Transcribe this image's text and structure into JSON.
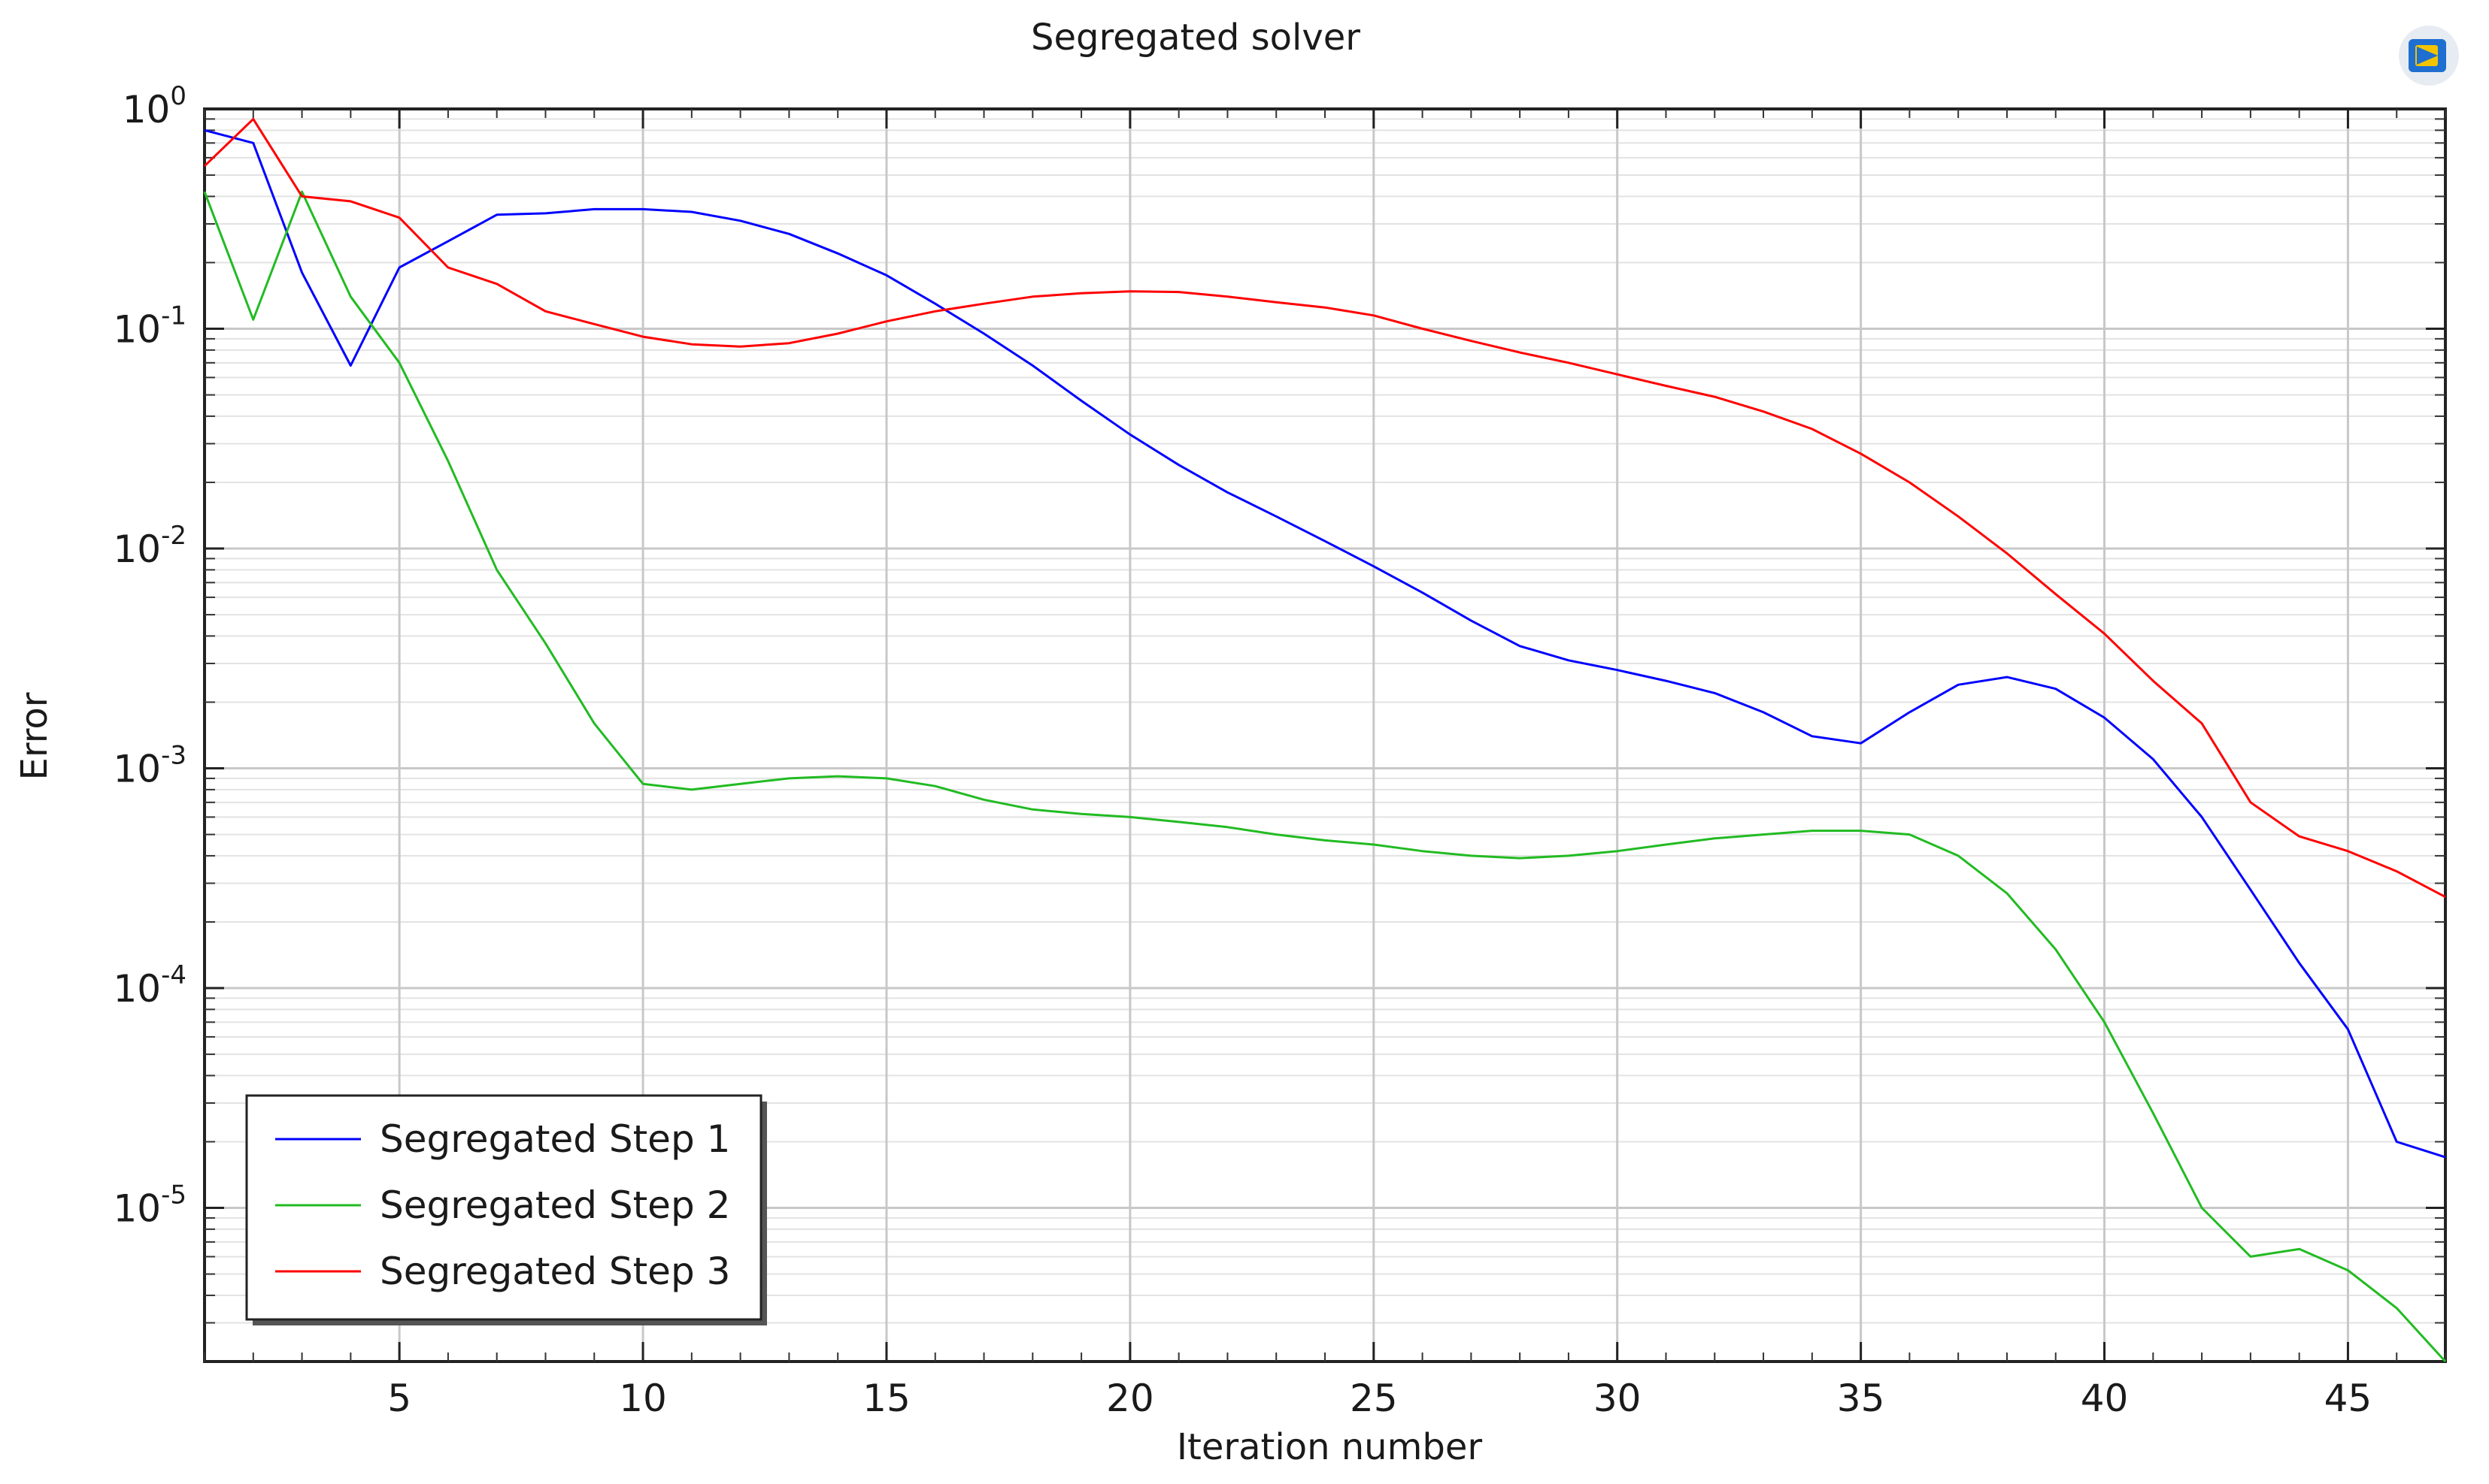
{
  "chart_data": {
    "type": "line",
    "title": "Segregated solver",
    "xlabel": "Iteration number",
    "ylabel": "Error",
    "x_scale": "linear",
    "y_scale": "log",
    "xlim": [
      1,
      47
    ],
    "ylim": [
      2e-06,
      1
    ],
    "x_ticks": [
      5,
      10,
      15,
      20,
      25,
      30,
      35,
      40,
      45
    ],
    "y_ticks": [
      {
        "value": 1,
        "base": "10",
        "exp": "0"
      },
      {
        "value": 0.1,
        "base": "10",
        "exp": "-1"
      },
      {
        "value": 0.01,
        "base": "10",
        "exp": "-2"
      },
      {
        "value": 0.001,
        "base": "10",
        "exp": "-3"
      },
      {
        "value": 0.0001,
        "base": "10",
        "exp": "-4"
      },
      {
        "value": 1e-05,
        "base": "10",
        "exp": "-5"
      }
    ],
    "grid": true,
    "legend_position": "bottom-left",
    "x": [
      1,
      2,
      3,
      4,
      5,
      6,
      7,
      8,
      9,
      10,
      11,
      12,
      13,
      14,
      15,
      16,
      17,
      18,
      19,
      20,
      21,
      22,
      23,
      24,
      25,
      26,
      27,
      28,
      29,
      30,
      31,
      32,
      33,
      34,
      35,
      36,
      37,
      38,
      39,
      40,
      41,
      42,
      43,
      44,
      45,
      46,
      47
    ],
    "series": [
      {
        "name": "Segregated Step 1",
        "color": "#0000ff",
        "values": [
          0.8,
          0.7,
          0.18,
          0.068,
          0.19,
          0.25,
          0.33,
          0.335,
          0.35,
          0.35,
          0.34,
          0.31,
          0.27,
          0.22,
          0.175,
          0.13,
          0.095,
          0.068,
          0.047,
          0.033,
          0.024,
          0.018,
          0.014,
          0.0108,
          0.0083,
          0.0063,
          0.0047,
          0.0036,
          0.0031,
          0.0028,
          0.0025,
          0.0022,
          0.0018,
          0.0014,
          0.0013,
          0.0018,
          0.0024,
          0.0026,
          0.0023,
          0.0017,
          0.0011,
          0.0006,
          0.00028,
          0.00013,
          6.5e-05,
          2e-05,
          1.7e-05
        ]
      },
      {
        "name": "Segregated Step 2",
        "color": "#22bb22",
        "values": [
          0.42,
          0.11,
          0.42,
          0.14,
          0.07,
          0.025,
          0.008,
          0.0037,
          0.0016,
          0.00085,
          0.0008,
          0.00085,
          0.0009,
          0.00092,
          0.0009,
          0.00083,
          0.00072,
          0.00065,
          0.00062,
          0.0006,
          0.00057,
          0.00054,
          0.0005,
          0.00047,
          0.00045,
          0.00042,
          0.0004,
          0.00039,
          0.0004,
          0.00042,
          0.00045,
          0.00048,
          0.0005,
          0.00052,
          0.00052,
          0.0005,
          0.0004,
          0.00027,
          0.00015,
          7e-05,
          2.7e-05,
          1e-05,
          6e-06,
          6.5e-06,
          5.2e-06,
          3.5e-06,
          2e-06
        ]
      },
      {
        "name": "Segregated Step 3",
        "color": "#ff0000",
        "values": [
          0.55,
          0.9,
          0.4,
          0.38,
          0.32,
          0.19,
          0.16,
          0.12,
          0.105,
          0.092,
          0.085,
          0.083,
          0.086,
          0.095,
          0.108,
          0.12,
          0.13,
          0.14,
          0.145,
          0.148,
          0.147,
          0.14,
          0.132,
          0.125,
          0.115,
          0.1,
          0.088,
          0.078,
          0.07,
          0.062,
          0.055,
          0.049,
          0.042,
          0.035,
          0.027,
          0.02,
          0.014,
          0.0095,
          0.0062,
          0.0041,
          0.0025,
          0.0016,
          0.0007,
          0.00049,
          0.00042,
          0.00034,
          0.00026
        ]
      }
    ]
  }
}
